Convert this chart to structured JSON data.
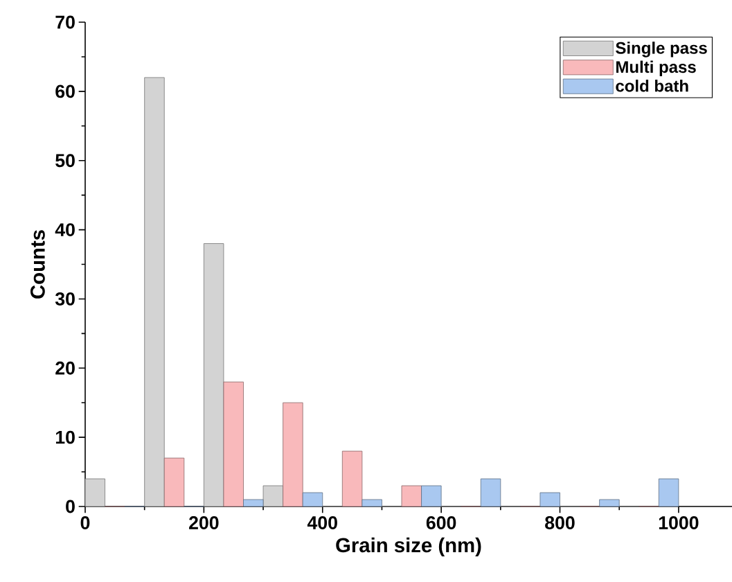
{
  "chart_data": {
    "type": "histogram",
    "xlabel": "Grain size (nm)",
    "ylabel": "Counts",
    "bins": [
      0,
      100,
      200,
      300,
      400,
      500,
      600,
      700,
      800,
      900,
      1000
    ],
    "series": [
      {
        "name": "Single pass",
        "color": "#d3d3d3",
        "values": [
          4,
          62,
          38,
          3,
          0,
          0,
          0,
          0,
          0,
          0
        ]
      },
      {
        "name": "Multi pass",
        "color": "#f9b9bb",
        "values": [
          0,
          7,
          18,
          15,
          8,
          3,
          0,
          0,
          0,
          0
        ]
      },
      {
        "name": "cold bath",
        "color": "#a9c8f0",
        "values": [
          0,
          0,
          1,
          2,
          1,
          3,
          4,
          2,
          1,
          4
        ]
      }
    ],
    "xlim": [
      0,
      1090
    ],
    "ylim": [
      0,
      70
    ],
    "xticks": [
      0,
      200,
      400,
      600,
      800,
      1000
    ],
    "yticks": [
      0,
      10,
      20,
      30,
      40,
      50,
      60,
      70
    ],
    "legend": "top right",
    "grid": false
  }
}
